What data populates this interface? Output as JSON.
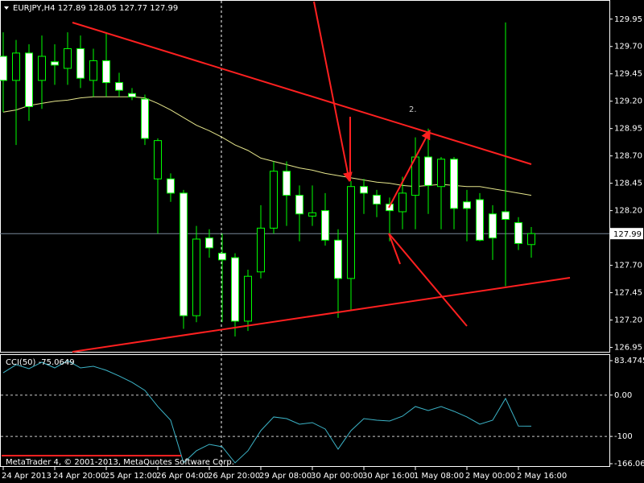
{
  "chart_data": [
    {
      "type": "candlestick",
      "title": "EURJPY,H4",
      "categories": [
        "24 Apr 2013",
        null,
        null,
        null,
        "24 Apr 20:00",
        null,
        null,
        null,
        "25 Apr 12:00",
        null,
        null,
        null,
        "26 Apr 04:00",
        null,
        null,
        null,
        "26 Apr 20:00",
        null,
        null,
        null,
        "29 Apr 08:00",
        null,
        null,
        null,
        "30 Apr 00:00",
        null,
        null,
        null,
        "30 Apr 16:00",
        null,
        null,
        null,
        "1 May 08:00",
        null,
        null,
        null,
        "2 May 00:00",
        null,
        null,
        null,
        "2 May 16:00",
        null
      ],
      "open": [
        129.61,
        129.39,
        129.64,
        129.39,
        129.56,
        129.5,
        129.68,
        129.39,
        129.57,
        129.37,
        129.27,
        129.22,
        128.49,
        128.49,
        128.36,
        127.24,
        127.95,
        127.81,
        127.77,
        127.19,
        127.64,
        128.04,
        128.56,
        128.34,
        128.15,
        128.2,
        127.93,
        127.58,
        128.42,
        128.34,
        128.26,
        128.19,
        128.34,
        128.69,
        128.42,
        128.67,
        128.28,
        128.3,
        128.17,
        128.19,
        128.09,
        127.89
      ],
      "high": [
        129.83,
        129.76,
        129.72,
        129.8,
        129.72,
        129.83,
        129.8,
        129.68,
        129.83,
        129.46,
        129.32,
        129.26,
        128.86,
        128.54,
        128.39,
        128.06,
        128.03,
        127.99,
        127.81,
        127.66,
        128.25,
        128.65,
        128.65,
        128.43,
        128.43,
        128.36,
        128.03,
        128.47,
        128.49,
        128.39,
        128.32,
        128.51,
        128.87,
        128.95,
        128.69,
        128.69,
        128.39,
        128.36,
        128.25,
        129.92,
        128.14,
        128.05
      ],
      "low": [
        129.1,
        128.8,
        129.02,
        129.13,
        129.35,
        129.35,
        129.32,
        129.24,
        129.24,
        129.24,
        129.21,
        128.8,
        127.99,
        128.28,
        127.12,
        127.18,
        127.77,
        127.18,
        127.05,
        127.1,
        127.58,
        127.99,
        128.06,
        127.92,
        128.06,
        127.88,
        127.22,
        127.29,
        128.17,
        128.14,
        127.92,
        128.03,
        128.03,
        128.17,
        128.03,
        128.03,
        127.92,
        127.92,
        127.75,
        127.51,
        127.84,
        127.77
      ],
      "close": [
        129.39,
        129.64,
        129.15,
        129.61,
        129.53,
        129.68,
        129.41,
        129.57,
        129.37,
        129.3,
        129.24,
        128.86,
        128.84,
        128.36,
        127.24,
        127.94,
        127.86,
        127.75,
        127.19,
        127.6,
        128.04,
        128.56,
        128.34,
        128.17,
        128.18,
        127.93,
        127.58,
        128.42,
        128.36,
        128.26,
        128.2,
        128.36,
        128.69,
        128.43,
        128.67,
        128.22,
        128.22,
        127.93,
        127.95,
        128.12,
        127.9,
        127.99
      ],
      "series": [
        {
          "color": "#e6e68c",
          "values": [
            129.1,
            129.12,
            129.16,
            129.18,
            129.2,
            129.21,
            129.23,
            129.24,
            129.24,
            129.24,
            129.24,
            129.23,
            129.18,
            129.12,
            129.05,
            128.98,
            128.93,
            128.87,
            128.8,
            128.75,
            128.68,
            128.65,
            128.62,
            128.59,
            128.57,
            128.54,
            128.52,
            128.5,
            128.48,
            128.46,
            128.45,
            128.43,
            128.42,
            128.43,
            128.44,
            128.43,
            128.42,
            128.42,
            128.4,
            128.38,
            128.36,
            128.34
          ]
        }
      ],
      "ylim": [
        126.91,
        130.11
      ],
      "yticks": [
        129.95,
        {
          "value": 129.7,
          "label": "129.70"
        },
        129.45,
        {
          "value": 129.2,
          "label": "129.20"
        },
        128.95,
        {
          "value": 128.7,
          "label": "128.70"
        },
        128.45,
        {
          "value": 128.2,
          "label": "128.20"
        },
        {
          "value": 127.7,
          "label": "127.70"
        },
        127.45,
        {
          "value": 127.2,
          "label": "127.20"
        },
        126.95
      ],
      "bull_color": "#000000",
      "bear_color": "#ffffff",
      "wick_color": "#00ff00",
      "annotation": "2.",
      "footer": "MetaTrader 4, © 2001-2013, MetaQuotes Software Corp."
    },
    {
      "type": "line",
      "title": "CCI(50)",
      "series": [
        {
          "color": "#3cb4c8",
          "values": [
            54.2,
            73.7,
            64.0,
            79.6,
            65.9,
            83.47,
            65.9,
            69.8,
            60.1,
            46.4,
            30.9,
            11.4,
            -27.6,
            -60.8,
            -164.0,
            -134.8,
            -119.2,
            -125.1,
            -164.0,
            -134.8,
            -86.1,
            -52.9,
            -56.9,
            -70.5,
            -66.6,
            -82.2,
            -130.9,
            -86.1,
            -56.9,
            -60.8,
            -62.7,
            -51.0,
            -27.6,
            -37.4,
            -27.6,
            -39.3,
            -52.9,
            -70.5,
            -60.8,
            -8.1,
            -75.0,
            -75.0649
          ]
        }
      ],
      "ylim": [
        -166.064,
        83.4745
      ],
      "yticks": [
        83.4745,
        {
          "value": 0,
          "label": "0.00"
        },
        -100,
        -166.064
      ]
    }
  ]
}
